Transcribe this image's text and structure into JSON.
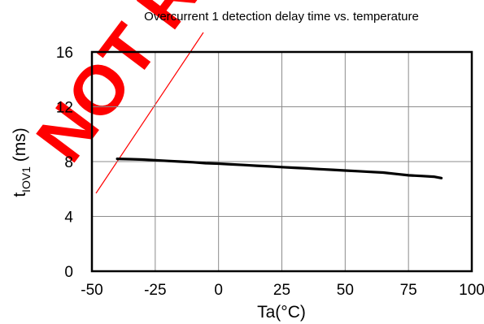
{
  "chart_data": {
    "type": "line",
    "title": "Overcurrent 1 detection delay time vs. temperature",
    "xlabel": "Ta(°C)",
    "ylabel": {
      "main": "t",
      "subscript": "IOV1",
      "unit": " (ms)"
    },
    "xlim": [
      -50,
      100
    ],
    "ylim": [
      0,
      16
    ],
    "xticks": [
      "-50",
      "-25",
      "0",
      "25",
      "50",
      "75",
      "100"
    ],
    "yticks": [
      "0",
      "4",
      "8",
      "12",
      "16"
    ],
    "grid": true,
    "series": [
      {
        "x": [
          -40,
          -35,
          -30,
          -25,
          -20,
          -15,
          -10,
          -5,
          0,
          5,
          10,
          15,
          20,
          25,
          30,
          35,
          40,
          45,
          50,
          55,
          60,
          65,
          70,
          75,
          80,
          85,
          88
        ],
        "y": [
          8.2,
          8.18,
          8.15,
          8.1,
          8.05,
          8.0,
          7.95,
          7.88,
          7.85,
          7.8,
          7.75,
          7.7,
          7.65,
          7.6,
          7.55,
          7.5,
          7.45,
          7.4,
          7.35,
          7.3,
          7.25,
          7.2,
          7.1,
          7.0,
          6.95,
          6.9,
          6.8
        ],
        "color": "#000000"
      }
    ],
    "watermark": {
      "text": "NOT REC",
      "color": "#ff0000"
    }
  }
}
